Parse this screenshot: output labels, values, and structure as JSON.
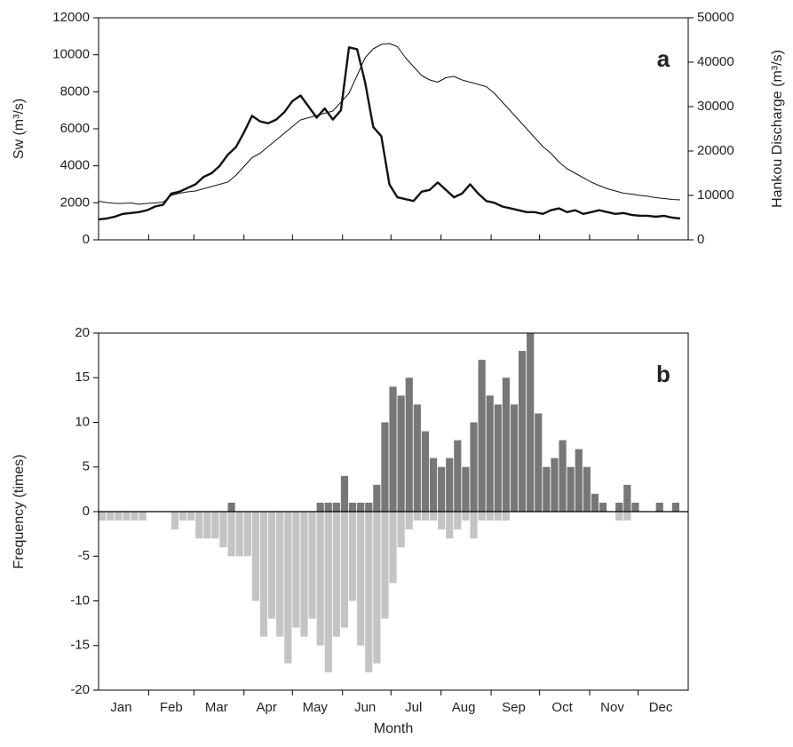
{
  "chart_data": [
    {
      "type": "line",
      "label": "a",
      "y_label": "Sw (m³/s)",
      "y2_label": "Hankou Discharge (m³/s)",
      "xlim": [
        1,
        366
      ],
      "xticks_minor": [
        32,
        60,
        91,
        121,
        152,
        182,
        213,
        244,
        274,
        305,
        335
      ],
      "ylim": [
        0,
        12000
      ],
      "yticks": [
        0,
        2000,
        4000,
        6000,
        8000,
        10000,
        12000
      ],
      "y2lim": [
        0,
        50000
      ],
      "y2ticks": [
        0,
        10000,
        20000,
        30000,
        40000,
        50000
      ],
      "x": [
        1,
        6,
        11,
        16,
        21,
        26,
        31,
        36,
        41,
        46,
        51,
        56,
        61,
        66,
        71,
        76,
        81,
        86,
        91,
        96,
        101,
        106,
        111,
        116,
        121,
        126,
        131,
        136,
        141,
        146,
        151,
        156,
        161,
        166,
        171,
        176,
        181,
        186,
        191,
        196,
        201,
        206,
        211,
        216,
        221,
        226,
        231,
        236,
        241,
        246,
        251,
        256,
        261,
        266,
        271,
        276,
        281,
        286,
        291,
        296,
        301,
        306,
        311,
        316,
        321,
        326,
        331,
        336,
        341,
        346,
        351,
        356,
        361
      ],
      "series": [
        {
          "color": "#111111",
          "width": 2.4,
          "values": [
            1100,
            1150,
            1250,
            1400,
            1450,
            1500,
            1600,
            1800,
            1900,
            2500,
            2600,
            2800,
            3000,
            3400,
            3600,
            4000,
            4600,
            5000,
            5800,
            6700,
            6400,
            6300,
            6500,
            6900,
            7500,
            7800,
            7200,
            6600,
            7100,
            6500,
            7000,
            10400,
            10300,
            8500,
            6100,
            5600,
            3000,
            2300,
            2200,
            2100,
            2600,
            2700,
            3100,
            2700,
            2300,
            2500,
            3000,
            2500,
            2100,
            2000,
            1800,
            1700,
            1600,
            1500,
            1500,
            1400,
            1600,
            1700,
            1500,
            1600,
            1400,
            1500,
            1600,
            1500,
            1400,
            1450,
            1350,
            1300,
            1300,
            1250,
            1300,
            1200,
            1150
          ]
        },
        {
          "color": "#111111",
          "width": 1,
          "axis": "y2",
          "values": [
            8700,
            8400,
            8200,
            8200,
            8300,
            8000,
            8200,
            8300,
            8500,
            10000,
            10500,
            10800,
            11000,
            11500,
            12000,
            12500,
            13000,
            14500,
            16500,
            18500,
            19500,
            21000,
            22500,
            24000,
            25500,
            27000,
            27500,
            28000,
            28500,
            29000,
            31000,
            33000,
            37000,
            41000,
            43000,
            44000,
            44200,
            43500,
            41000,
            39000,
            37000,
            36000,
            35500,
            36500,
            36800,
            36000,
            35500,
            35000,
            34500,
            33000,
            31000,
            29000,
            27000,
            25000,
            23000,
            21000,
            19500,
            17500,
            16000,
            15000,
            14000,
            13000,
            12200,
            11500,
            11000,
            10500,
            10300,
            10000,
            9800,
            9500,
            9300,
            9100,
            9000
          ]
        }
      ]
    },
    {
      "type": "bar",
      "label": "b",
      "y_label": "Frequency (times)",
      "x_label": "Month",
      "xlim": [
        1,
        366
      ],
      "xticks_minor": [
        32,
        60,
        91,
        121,
        152,
        182,
        213,
        244,
        274,
        305,
        335
      ],
      "xticks": [
        {
          "value": 15,
          "label": "Jan"
        },
        {
          "value": 46,
          "label": "Feb"
        },
        {
          "value": 74,
          "label": "Mar"
        },
        {
          "value": 105,
          "label": "Apr"
        },
        {
          "value": 135,
          "label": "May"
        },
        {
          "value": 166,
          "label": "Jun"
        },
        {
          "value": 196,
          "label": "Jul"
        },
        {
          "value": 227,
          "label": "Aug"
        },
        {
          "value": 258,
          "label": "Sep"
        },
        {
          "value": 288,
          "label": "Oct"
        },
        {
          "value": 319,
          "label": "Nov"
        },
        {
          "value": 349,
          "label": "Dec"
        }
      ],
      "ylim": [
        -20,
        20
      ],
      "yticks": [
        -20,
        -15,
        -10,
        -5,
        0,
        5,
        10,
        15,
        20
      ],
      "x": [
        1,
        6,
        11,
        16,
        21,
        26,
        31,
        36,
        41,
        46,
        51,
        56,
        61,
        66,
        71,
        76,
        81,
        86,
        91,
        96,
        101,
        106,
        111,
        116,
        121,
        126,
        131,
        136,
        141,
        146,
        151,
        156,
        161,
        166,
        171,
        176,
        181,
        186,
        191,
        196,
        201,
        206,
        211,
        216,
        221,
        226,
        231,
        236,
        241,
        246,
        251,
        256,
        261,
        266,
        271,
        276,
        281,
        286,
        291,
        296,
        301,
        306,
        311,
        316,
        321,
        326,
        331,
        336,
        341,
        346,
        351,
        356,
        361
      ],
      "series": [
        {
          "color": "#777777",
          "values": [
            0,
            0,
            0,
            0,
            0,
            0,
            0,
            0,
            0,
            0,
            0,
            0,
            0,
            0,
            0,
            0,
            1,
            0,
            0,
            0,
            0,
            0,
            0,
            0,
            0,
            0,
            0,
            1,
            1,
            1,
            4,
            1,
            1,
            1,
            3,
            10,
            14,
            13,
            15,
            12,
            9,
            6,
            5,
            6,
            8,
            5,
            10,
            17,
            13,
            12,
            15,
            12,
            18,
            20,
            11,
            5,
            6,
            8,
            5,
            7,
            5,
            2,
            1,
            0,
            1,
            3,
            1,
            0,
            0,
            1,
            0,
            1,
            0
          ]
        },
        {
          "color": "#c4c4c4",
          "values": [
            -1,
            -1,
            -1,
            -1,
            -1,
            -1,
            0,
            0,
            0,
            -2,
            -1,
            -1,
            -3,
            -3,
            -3,
            -4,
            -5,
            -5,
            -5,
            -10,
            -14,
            -12,
            -14,
            -17,
            -13,
            -14,
            -12,
            -15,
            -18,
            -14,
            -13,
            -10,
            -15,
            -18,
            -17,
            -12,
            -8,
            -4,
            -2,
            -1,
            -1,
            -1,
            -2,
            -3,
            -2,
            -1,
            -3,
            -1,
            -1,
            -1,
            -1,
            0,
            0,
            0,
            0,
            0,
            0,
            0,
            0,
            0,
            0,
            0,
            0,
            0,
            -1,
            -1,
            0,
            0,
            0,
            0,
            0,
            0,
            0
          ]
        }
      ]
    }
  ]
}
